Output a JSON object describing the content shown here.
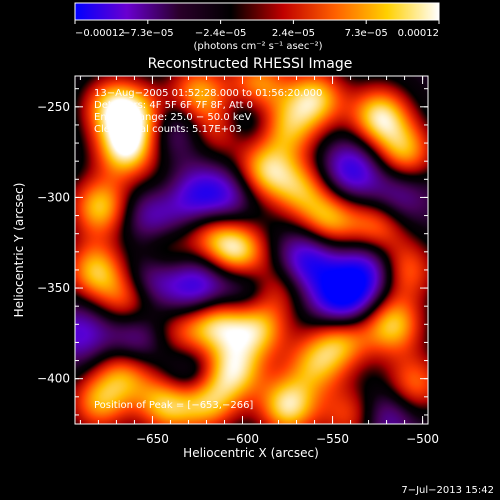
{
  "chart_data": {
    "type": "heatmap",
    "title": "Reconstructed RHESSI Image",
    "xlabel": "Heliocentric X (arcsec)",
    "ylabel": "Heliocentric Y (arcsec)",
    "x_ticks": [
      -650,
      -600,
      -550,
      -500
    ],
    "y_ticks": [
      -250,
      -300,
      -350,
      -400
    ],
    "x_tick_labels": [
      "−650",
      "−600",
      "−550",
      "−500"
    ],
    "y_tick_labels": [
      "−250",
      "−300",
      "−350",
      "−400"
    ],
    "xlim": [
      -693,
      -497
    ],
    "ylim": [
      -425,
      -233
    ],
    "colorbar": {
      "tick_labels": [
        "−0.00012",
        "−7.3e−05",
        "−2.4e−05",
        "2.4e−05",
        "7.3e−05",
        "0.00012"
      ],
      "range": [
        -0.00012,
        0.00012
      ],
      "unit_label": "(photons cm⁻² s⁻¹ asec⁻²)",
      "colors": [
        "#0000ff",
        "#6a00d0",
        "#2a002a",
        "#000000",
        "#c00000",
        "#ff6000",
        "#ffd000",
        "#ffffff"
      ]
    },
    "annotations": [
      "13−Aug−2005 01:52:28.000 to 01:56:20.000",
      "Detectors: 4F 5F 6F 7F 8F, Att 0",
      "Energy Range: 25.0 − 50.0 keV",
      "Clean   Total counts: 5.17E+03"
    ],
    "peak_label": "Position of Peak = [−653,−266]",
    "blobs": [
      {
        "x": -665,
        "y": -273,
        "v": 1.0
      },
      {
        "x": -672,
        "y": -250,
        "v": 0.9
      },
      {
        "x": -655,
        "y": -255,
        "v": 0.7
      },
      {
        "x": -679,
        "y": -305,
        "v": 0.9
      },
      {
        "x": -682,
        "y": -340,
        "v": 0.85
      },
      {
        "x": -663,
        "y": -355,
        "v": 0.75
      },
      {
        "x": -625,
        "y": -242,
        "v": 0.8
      },
      {
        "x": -612,
        "y": -262,
        "v": 0.6
      },
      {
        "x": -592,
        "y": -238,
        "v": 0.8
      },
      {
        "x": -575,
        "y": -262,
        "v": 0.7
      },
      {
        "x": -560,
        "y": -245,
        "v": 0.9
      },
      {
        "x": -524,
        "y": -255,
        "v": 1.0
      },
      {
        "x": -510,
        "y": -275,
        "v": 0.8
      },
      {
        "x": -588,
        "y": -285,
        "v": 0.85
      },
      {
        "x": -568,
        "y": -295,
        "v": 0.7
      },
      {
        "x": -552,
        "y": -312,
        "v": 0.8
      },
      {
        "x": -603,
        "y": -330,
        "v": 1.0
      },
      {
        "x": -618,
        "y": -318,
        "v": 0.6
      },
      {
        "x": -645,
        "y": -330,
        "v": 0.55
      },
      {
        "x": -640,
        "y": -298,
        "v": 0.5
      },
      {
        "x": -580,
        "y": -348,
        "v": 0.55
      },
      {
        "x": -525,
        "y": -315,
        "v": 0.75
      },
      {
        "x": -510,
        "y": -340,
        "v": 0.7
      },
      {
        "x": -517,
        "y": -370,
        "v": 0.9
      },
      {
        "x": -505,
        "y": -403,
        "v": 0.7
      },
      {
        "x": -615,
        "y": -368,
        "v": 0.9
      },
      {
        "x": -592,
        "y": -372,
        "v": 0.85
      },
      {
        "x": -635,
        "y": -375,
        "v": 0.5
      },
      {
        "x": -545,
        "y": -378,
        "v": 0.75
      },
      {
        "x": -560,
        "y": -392,
        "v": 0.7
      },
      {
        "x": -605,
        "y": -395,
        "v": 0.9
      },
      {
        "x": -665,
        "y": -395,
        "v": 0.8
      },
      {
        "x": -680,
        "y": -413,
        "v": 0.75
      },
      {
        "x": -642,
        "y": -413,
        "v": 0.95
      },
      {
        "x": -620,
        "y": -412,
        "v": 0.9
      },
      {
        "x": -575,
        "y": -415,
        "v": 1.0
      },
      {
        "x": -540,
        "y": -420,
        "v": 0.6
      },
      {
        "x": -630,
        "y": -400,
        "v": -0.6
      },
      {
        "x": -652,
        "y": -345,
        "v": -0.7
      },
      {
        "x": -625,
        "y": -350,
        "v": -0.75
      },
      {
        "x": -630,
        "y": -300,
        "v": -0.8
      },
      {
        "x": -650,
        "y": -310,
        "v": -0.6
      },
      {
        "x": -610,
        "y": -300,
        "v": -0.6
      },
      {
        "x": -565,
        "y": -335,
        "v": -0.8
      },
      {
        "x": -545,
        "y": -355,
        "v": -1.0
      },
      {
        "x": -530,
        "y": -340,
        "v": -0.7
      },
      {
        "x": -600,
        "y": -350,
        "v": -0.5
      },
      {
        "x": -640,
        "y": -260,
        "v": -0.5
      },
      {
        "x": -600,
        "y": -255,
        "v": -0.5
      },
      {
        "x": -540,
        "y": -285,
        "v": -0.7
      },
      {
        "x": -690,
        "y": -375,
        "v": -0.5
      },
      {
        "x": -515,
        "y": -300,
        "v": -0.5
      },
      {
        "x": -520,
        "y": -420,
        "v": -0.5
      },
      {
        "x": -660,
        "y": -380,
        "v": -0.6
      }
    ]
  },
  "footer": {
    "date": "7−Jul−2013 15:42"
  }
}
